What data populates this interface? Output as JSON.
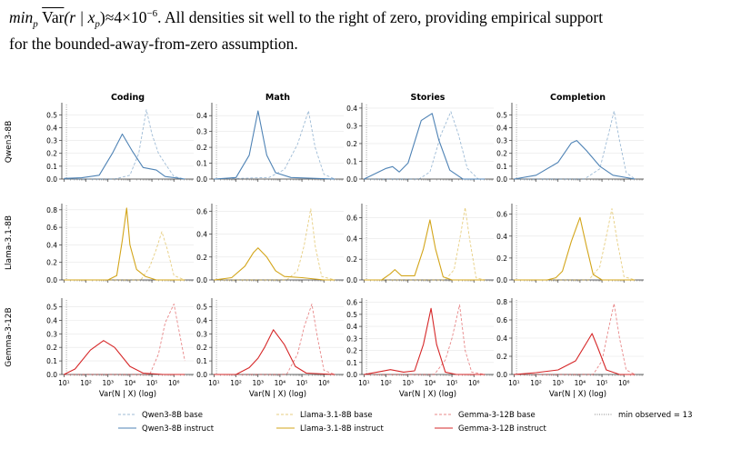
{
  "paragraph": {
    "line1_math": "min",
    "line1_sub": "p",
    "line1_var": "Var",
    "line1_expr": "(r | x",
    "line1_expr_sub": "p",
    "line1_approx": ")≈4×10",
    "line1_exp": "−6",
    "line1_text": ". All densities sit well to the right of zero, providing empirical support",
    "line2_text": "for the bounded-away-from-zero assumption."
  },
  "chart_data": {
    "type": "line",
    "x_scale": "log",
    "columns": [
      "Coding",
      "Math",
      "Stories",
      "Completion"
    ],
    "row_labels": [
      "Qwen3-8B",
      "Llama-3.1-8B",
      "Gemma-3-12B"
    ],
    "xlabel": "Var(N | X) (log)",
    "x_ticks": [
      "10¹",
      "10²",
      "10³",
      "10⁴",
      "10⁵",
      "10⁶"
    ],
    "xlim_log10": [
      0.9,
      6.9
    ],
    "min_observed_log10": 1.11,
    "colors": {
      "Qwen3-8B": "#4f83b5",
      "Llama-3.1-8B": "#d3a51a",
      "Gemma-3-12B": "#d62728"
    },
    "legend": [
      {
        "name": "Qwen3-8B base",
        "model": "Qwen3-8B",
        "style": "dashed"
      },
      {
        "name": "Qwen3-8B instruct",
        "model": "Qwen3-8B",
        "style": "solid"
      },
      {
        "name": "Llama-3.1-8B base",
        "model": "Llama-3.1-8B",
        "style": "dashed"
      },
      {
        "name": "Llama-3.1-8B instruct",
        "model": "Llama-3.1-8B",
        "style": "solid"
      },
      {
        "name": "Gemma-3-12B base",
        "model": "Gemma-3-12B",
        "style": "dashed"
      },
      {
        "name": "Gemma-3-12B instruct",
        "model": "Gemma-3-12B",
        "style": "solid"
      },
      {
        "name": "min observed = 13",
        "model": "min",
        "style": "dotted"
      }
    ],
    "panels": [
      {
        "row": 0,
        "col": 0,
        "ylim": [
          0,
          0.58
        ],
        "yticks": [
          "0.0",
          "0.1",
          "0.2",
          "0.3",
          "0.4",
          "0.5"
        ],
        "instruct": [
          [
            1,
            0.005
          ],
          [
            1.8,
            0.01
          ],
          [
            2.6,
            0.03
          ],
          [
            3.2,
            0.2
          ],
          [
            3.65,
            0.35
          ],
          [
            4.1,
            0.22
          ],
          [
            4.6,
            0.09
          ],
          [
            5.2,
            0.07
          ],
          [
            5.6,
            0.02
          ],
          [
            6.5,
            0.0
          ]
        ],
        "base": [
          [
            1,
            0.0
          ],
          [
            3.3,
            0.0
          ],
          [
            4.0,
            0.03
          ],
          [
            4.4,
            0.2
          ],
          [
            4.75,
            0.54
          ],
          [
            5.0,
            0.35
          ],
          [
            5.3,
            0.2
          ],
          [
            5.6,
            0.12
          ],
          [
            6.0,
            0.02
          ],
          [
            6.5,
            0.0
          ]
        ]
      },
      {
        "row": 0,
        "col": 1,
        "ylim": [
          0,
          0.47
        ],
        "yticks": [
          "0.0",
          "0.1",
          "0.2",
          "0.3",
          "0.4"
        ],
        "instruct": [
          [
            1,
            0.0
          ],
          [
            2.0,
            0.01
          ],
          [
            2.6,
            0.15
          ],
          [
            3.0,
            0.43
          ],
          [
            3.4,
            0.15
          ],
          [
            3.8,
            0.04
          ],
          [
            4.5,
            0.01
          ],
          [
            6.5,
            0.0
          ]
        ],
        "base": [
          [
            1,
            0.0
          ],
          [
            3.5,
            0.01
          ],
          [
            4.2,
            0.06
          ],
          [
            4.8,
            0.22
          ],
          [
            5.3,
            0.43
          ],
          [
            5.6,
            0.2
          ],
          [
            6.0,
            0.03
          ],
          [
            6.5,
            0.0
          ]
        ]
      },
      {
        "row": 0,
        "col": 2,
        "ylim": [
          0,
          0.42
        ],
        "yticks": [
          "0.0",
          "0.1",
          "0.2",
          "0.3",
          "0.4"
        ],
        "instruct": [
          [
            1,
            0.0
          ],
          [
            1.5,
            0.03
          ],
          [
            2.0,
            0.06
          ],
          [
            2.3,
            0.07
          ],
          [
            2.6,
            0.04
          ],
          [
            3.0,
            0.09
          ],
          [
            3.6,
            0.33
          ],
          [
            4.1,
            0.37
          ],
          [
            4.4,
            0.22
          ],
          [
            4.9,
            0.05
          ],
          [
            5.5,
            0.0
          ],
          [
            6.5,
            0.0
          ]
        ],
        "base": [
          [
            1,
            0.0
          ],
          [
            3.5,
            0.0
          ],
          [
            4.0,
            0.04
          ],
          [
            4.5,
            0.25
          ],
          [
            4.95,
            0.38
          ],
          [
            5.3,
            0.25
          ],
          [
            5.7,
            0.06
          ],
          [
            6.2,
            0.0
          ],
          [
            6.5,
            0.0
          ]
        ]
      },
      {
        "row": 0,
        "col": 3,
        "ylim": [
          0,
          0.58
        ],
        "yticks": [
          "0.0",
          "0.1",
          "0.2",
          "0.3",
          "0.4",
          "0.5"
        ],
        "instruct": [
          [
            1,
            0.0
          ],
          [
            2.0,
            0.03
          ],
          [
            3.0,
            0.13
          ],
          [
            3.6,
            0.28
          ],
          [
            3.85,
            0.3
          ],
          [
            4.3,
            0.22
          ],
          [
            4.9,
            0.1
          ],
          [
            5.5,
            0.03
          ],
          [
            6.5,
            0.0
          ]
        ],
        "base": [
          [
            1,
            0.0
          ],
          [
            4.2,
            0.0
          ],
          [
            4.9,
            0.08
          ],
          [
            5.3,
            0.35
          ],
          [
            5.55,
            0.53
          ],
          [
            5.8,
            0.3
          ],
          [
            6.1,
            0.05
          ],
          [
            6.5,
            0.0
          ]
        ]
      },
      {
        "row": 1,
        "col": 0,
        "ylim": [
          0,
          0.85
        ],
        "yticks": [
          "0.0",
          "0.2",
          "0.4",
          "0.6",
          "0.8"
        ],
        "instruct": [
          [
            1,
            0.0
          ],
          [
            3.0,
            0.0
          ],
          [
            3.4,
            0.05
          ],
          [
            3.65,
            0.45
          ],
          [
            3.85,
            0.82
          ],
          [
            4.0,
            0.4
          ],
          [
            4.3,
            0.12
          ],
          [
            4.7,
            0.04
          ],
          [
            5.2,
            0.0
          ],
          [
            6.5,
            0.0
          ]
        ],
        "base": [
          [
            1,
            0.0
          ],
          [
            4.5,
            0.0
          ],
          [
            4.9,
            0.15
          ],
          [
            5.2,
            0.35
          ],
          [
            5.45,
            0.55
          ],
          [
            5.7,
            0.35
          ],
          [
            6.0,
            0.05
          ],
          [
            6.5,
            0.0
          ]
        ]
      },
      {
        "row": 1,
        "col": 1,
        "ylim": [
          0,
          0.65
        ],
        "yticks": [
          "0.0",
          "0.2",
          "0.4",
          "0.6"
        ],
        "instruct": [
          [
            1,
            0.0
          ],
          [
            1.8,
            0.02
          ],
          [
            2.4,
            0.12
          ],
          [
            2.8,
            0.24
          ],
          [
            3.0,
            0.28
          ],
          [
            3.4,
            0.2
          ],
          [
            3.8,
            0.08
          ],
          [
            4.2,
            0.03
          ],
          [
            5.0,
            0.02
          ],
          [
            6.0,
            0.0
          ],
          [
            6.5,
            0.0
          ]
        ],
        "base": [
          [
            1,
            0.0
          ],
          [
            4.3,
            0.0
          ],
          [
            4.8,
            0.08
          ],
          [
            5.1,
            0.3
          ],
          [
            5.4,
            0.62
          ],
          [
            5.6,
            0.3
          ],
          [
            5.9,
            0.03
          ],
          [
            6.5,
            0.0
          ]
        ]
      },
      {
        "row": 1,
        "col": 2,
        "ylim": [
          0,
          0.72
        ],
        "yticks": [
          "0.0",
          "0.2",
          "0.4",
          "0.6"
        ],
        "instruct": [
          [
            1,
            0.0
          ],
          [
            1.8,
            0.0
          ],
          [
            2.2,
            0.06
          ],
          [
            2.4,
            0.1
          ],
          [
            2.7,
            0.04
          ],
          [
            3.3,
            0.04
          ],
          [
            3.7,
            0.3
          ],
          [
            4.0,
            0.58
          ],
          [
            4.25,
            0.3
          ],
          [
            4.6,
            0.03
          ],
          [
            5.0,
            0.0
          ],
          [
            6.5,
            0.0
          ]
        ],
        "base": [
          [
            1,
            0.0
          ],
          [
            4.7,
            0.0
          ],
          [
            5.1,
            0.1
          ],
          [
            5.4,
            0.45
          ],
          [
            5.6,
            0.7
          ],
          [
            5.8,
            0.4
          ],
          [
            6.1,
            0.02
          ],
          [
            6.5,
            0.0
          ]
        ]
      },
      {
        "row": 1,
        "col": 3,
        "ylim": [
          0,
          0.68
        ],
        "yticks": [
          "0.0",
          "0.2",
          "0.4",
          "0.6"
        ],
        "instruct": [
          [
            1,
            0.0
          ],
          [
            2.5,
            0.0
          ],
          [
            2.9,
            0.02
          ],
          [
            3.2,
            0.08
          ],
          [
            3.6,
            0.35
          ],
          [
            4.0,
            0.57
          ],
          [
            4.3,
            0.3
          ],
          [
            4.6,
            0.05
          ],
          [
            5.0,
            0.0
          ],
          [
            6.5,
            0.0
          ]
        ],
        "base": [
          [
            1,
            0.0
          ],
          [
            4.4,
            0.0
          ],
          [
            4.9,
            0.12
          ],
          [
            5.2,
            0.4
          ],
          [
            5.45,
            0.65
          ],
          [
            5.7,
            0.35
          ],
          [
            6.0,
            0.03
          ],
          [
            6.5,
            0.0
          ]
        ]
      },
      {
        "row": 2,
        "col": 0,
        "ylim": [
          0,
          0.55
        ],
        "yticks": [
          "0.0",
          "0.1",
          "0.2",
          "0.3",
          "0.4",
          "0.5"
        ],
        "instruct": [
          [
            1,
            0.0
          ],
          [
            1.5,
            0.04
          ],
          [
            2.2,
            0.18
          ],
          [
            2.8,
            0.25
          ],
          [
            3.3,
            0.2
          ],
          [
            4.0,
            0.06
          ],
          [
            4.6,
            0.01
          ],
          [
            5.5,
            0.0
          ],
          [
            6.5,
            0.0
          ]
        ],
        "base": [
          [
            1,
            0.0
          ],
          [
            4.9,
            0.0
          ],
          [
            5.3,
            0.15
          ],
          [
            5.6,
            0.38
          ],
          [
            6.0,
            0.52
          ],
          [
            6.2,
            0.35
          ],
          [
            6.5,
            0.1
          ]
        ]
      },
      {
        "row": 2,
        "col": 1,
        "ylim": [
          0,
          0.55
        ],
        "yticks": [
          "0.0",
          "0.1",
          "0.2",
          "0.3",
          "0.4",
          "0.5"
        ],
        "instruct": [
          [
            1,
            0.0
          ],
          [
            2.0,
            0.0
          ],
          [
            2.6,
            0.05
          ],
          [
            3.0,
            0.12
          ],
          [
            3.3,
            0.2
          ],
          [
            3.7,
            0.33
          ],
          [
            4.2,
            0.22
          ],
          [
            4.7,
            0.06
          ],
          [
            5.2,
            0.01
          ],
          [
            6.5,
            0.0
          ]
        ],
        "base": [
          [
            1,
            0.0
          ],
          [
            4.3,
            0.0
          ],
          [
            4.8,
            0.15
          ],
          [
            5.1,
            0.35
          ],
          [
            5.45,
            0.52
          ],
          [
            5.7,
            0.28
          ],
          [
            6.0,
            0.03
          ],
          [
            6.5,
            0.0
          ]
        ]
      },
      {
        "row": 2,
        "col": 2,
        "ylim": [
          0,
          0.62
        ],
        "yticks": [
          "0.0",
          "0.1",
          "0.2",
          "0.3",
          "0.4",
          "0.5",
          "0.6"
        ],
        "instruct": [
          [
            1,
            0.0
          ],
          [
            1.6,
            0.02
          ],
          [
            2.2,
            0.04
          ],
          [
            2.8,
            0.02
          ],
          [
            3.3,
            0.03
          ],
          [
            3.7,
            0.25
          ],
          [
            4.05,
            0.55
          ],
          [
            4.3,
            0.25
          ],
          [
            4.7,
            0.02
          ],
          [
            5.2,
            0.0
          ],
          [
            6.5,
            0.0
          ]
        ],
        "base": [
          [
            1,
            0.0
          ],
          [
            4.2,
            0.0
          ],
          [
            4.7,
            0.12
          ],
          [
            5.0,
            0.3
          ],
          [
            5.35,
            0.58
          ],
          [
            5.6,
            0.2
          ],
          [
            5.9,
            0.02
          ],
          [
            6.5,
            0.0
          ]
        ]
      },
      {
        "row": 2,
        "col": 3,
        "ylim": [
          0,
          0.82
        ],
        "yticks": [
          "0.0",
          "0.2",
          "0.4",
          "0.6",
          "0.8"
        ],
        "instruct": [
          [
            1,
            0.0
          ],
          [
            2.0,
            0.02
          ],
          [
            3.0,
            0.05
          ],
          [
            3.8,
            0.15
          ],
          [
            4.3,
            0.35
          ],
          [
            4.55,
            0.45
          ],
          [
            4.8,
            0.3
          ],
          [
            5.2,
            0.05
          ],
          [
            5.8,
            0.0
          ],
          [
            6.5,
            0.0
          ]
        ],
        "base": [
          [
            1,
            0.0
          ],
          [
            4.6,
            0.0
          ],
          [
            5.0,
            0.15
          ],
          [
            5.3,
            0.5
          ],
          [
            5.55,
            0.78
          ],
          [
            5.8,
            0.4
          ],
          [
            6.1,
            0.05
          ],
          [
            6.5,
            0.0
          ]
        ]
      }
    ]
  }
}
